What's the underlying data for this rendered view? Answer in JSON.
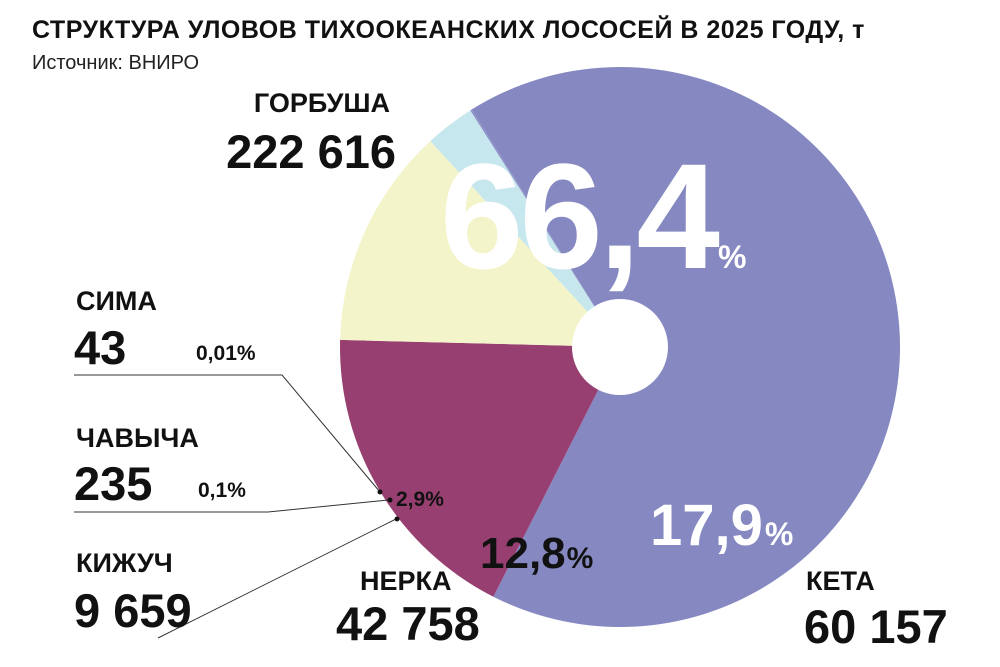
{
  "header": {
    "title": "СТРУКТУРА УЛОВОВ ТИХООКЕАНСКИХ ЛОСОСЕЙ В 2025 ГОДУ, т",
    "source": "Источник: ВНИРО"
  },
  "chart_data": {
    "type": "pie",
    "title": "СТРУКТУРА УЛОВОВ ТИХООКЕАНСКИХ ЛОСОСЕЙ В 2025 ГОДУ, т",
    "slices": [
      {
        "name": "ГОРБУША",
        "value": 222616,
        "value_label": "222 616",
        "percent": "66,4",
        "color": "#8688c2"
      },
      {
        "name": "КЕТА",
        "value": 60157,
        "value_label": "60 157",
        "percent": "17,9",
        "color": "#973f70"
      },
      {
        "name": "НЕРКА",
        "value": 42758,
        "value_label": "42 758",
        "percent": "12,8",
        "color": "#f3f4c9"
      },
      {
        "name": "КИЖУЧ",
        "value": 9659,
        "value_label": "9 659",
        "percent": "2,9",
        "color": "#c7e7ee"
      },
      {
        "name": "ЧАВЫЧА",
        "value": 235,
        "value_label": "235",
        "percent": "0,1",
        "color": "#8688c2"
      },
      {
        "name": "СИМА",
        "value": 43,
        "value_label": "43",
        "percent": "0,01",
        "color": "#8688c2"
      }
    ],
    "percent_sign": "%"
  }
}
